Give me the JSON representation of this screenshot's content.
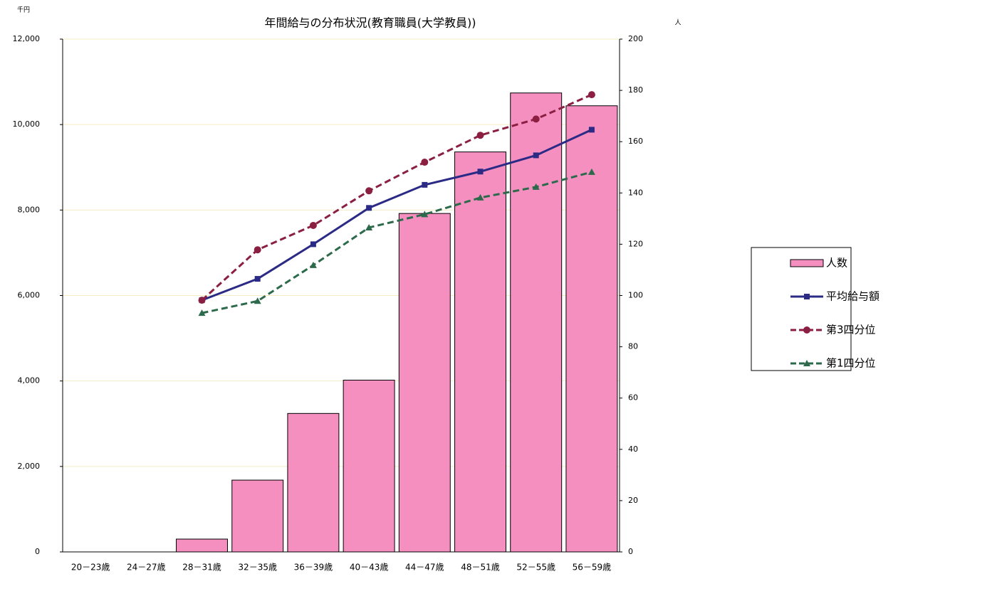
{
  "chart_data": {
    "type": "combo",
    "title": "年間給与の分布状況(教育職員(大学教員))",
    "y_unit": "千円",
    "y2_unit": "人",
    "categories": [
      "20－23歳",
      "24－27歳",
      "28－31歳",
      "32－35歳",
      "36－39歳",
      "40－43歳",
      "44－47歳",
      "48－51歳",
      "52－55歳",
      "56－59歳"
    ],
    "series": [
      {
        "name": "人数",
        "type": "bar",
        "axis": "y2",
        "color": "#f48fc0",
        "values": [
          0,
          0,
          5,
          28,
          54,
          67,
          132,
          156,
          179,
          174
        ]
      },
      {
        "name": "平均給与額",
        "type": "line",
        "color": "#2b2b86",
        "marker": "square",
        "dashed": false,
        "values": [
          null,
          null,
          5890,
          6390,
          7200,
          8050,
          8590,
          8900,
          9280,
          9880
        ]
      },
      {
        "name": "第3四分位",
        "type": "line",
        "color": "#8a1f42",
        "marker": "circle",
        "dashed": true,
        "values": [
          null,
          null,
          5890,
          7070,
          7640,
          8450,
          9120,
          9750,
          10130,
          10700
        ]
      },
      {
        "name": "第1四分位",
        "type": "line",
        "color": "#2d6a4c",
        "marker": "triangle",
        "dashed": true,
        "values": [
          null,
          null,
          5590,
          5870,
          6710,
          7590,
          7900,
          8290,
          8540,
          8890
        ]
      }
    ],
    "ylim": [
      0,
      12000
    ],
    "yticks": [
      0,
      {
        "value": 2000,
        "label": "2,000"
      },
      {
        "value": 4000,
        "label": "4,000"
      },
      {
        "value": 6000,
        "label": "6,000"
      },
      {
        "value": 8000,
        "label": "8,000"
      },
      {
        "value": 10000,
        "label": "10,000"
      },
      {
        "value": 12000,
        "label": "12,000"
      }
    ],
    "y2lim": [
      0,
      200
    ],
    "y2ticks": [
      0,
      20,
      40,
      60,
      80,
      100,
      120,
      140,
      160,
      180,
      200
    ],
    "grid": true,
    "legend": "right"
  }
}
